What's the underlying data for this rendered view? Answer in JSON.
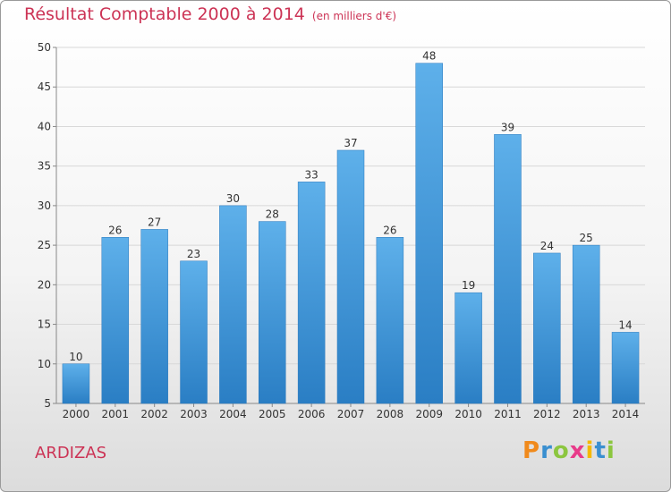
{
  "header": {
    "title": "Résultat Comptable 2000 à 2014",
    "subtitle": "(en milliers d'€)"
  },
  "footer": {
    "commune": "ARDIZAS",
    "brand_letters": [
      {
        "ch": "P",
        "color": "#f08a1c"
      },
      {
        "ch": "r",
        "color": "#3a8fd0"
      },
      {
        "ch": "o",
        "color": "#8cc63f"
      },
      {
        "ch": "x",
        "color": "#e83b8a"
      },
      {
        "ch": "i",
        "color": "#f5b800"
      },
      {
        "ch": "t",
        "color": "#3a8fd0"
      },
      {
        "ch": "i",
        "color": "#8cc63f"
      }
    ]
  },
  "colors": {
    "bar": "#3f97dc",
    "title": "#cc3355"
  },
  "chart_data": {
    "type": "bar",
    "title": "Résultat Comptable 2000 à 2014",
    "subtitle": "(en milliers d'€)",
    "xlabel": "",
    "ylabel": "",
    "categories": [
      "2000",
      "2001",
      "2002",
      "2003",
      "2004",
      "2005",
      "2006",
      "2007",
      "2008",
      "2009",
      "2010",
      "2011",
      "2012",
      "2013",
      "2014"
    ],
    "values": [
      10,
      26,
      27,
      23,
      30,
      28,
      33,
      37,
      26,
      48,
      19,
      39,
      24,
      25,
      14
    ],
    "ylim": [
      5,
      50
    ],
    "yticks": [
      5,
      10,
      15,
      20,
      25,
      30,
      35,
      40,
      45,
      50
    ],
    "grid": "horizontal"
  }
}
